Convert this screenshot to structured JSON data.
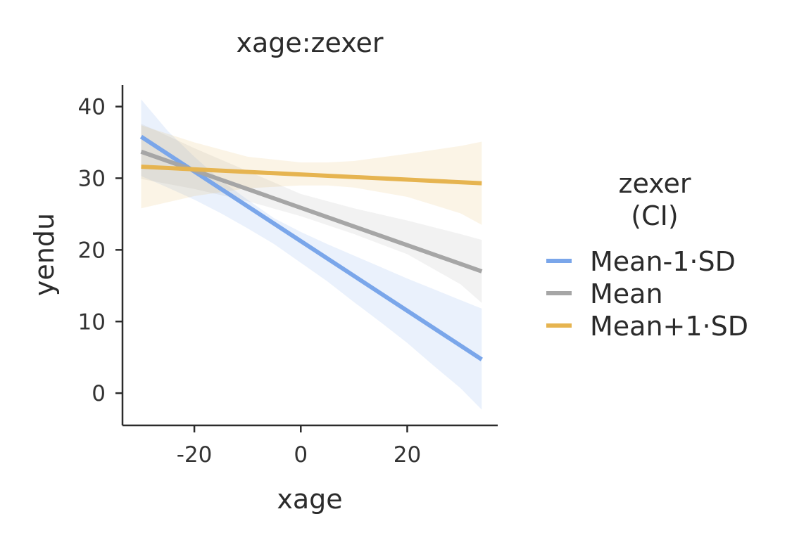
{
  "chart_data": {
    "type": "line",
    "title": "xage:zexer",
    "xlabel": "xage",
    "ylabel": "yendu",
    "xlim": [
      -33.5,
      37
    ],
    "ylim": [
      -4.5,
      43
    ],
    "x_ticks": [
      -20,
      0,
      20
    ],
    "x_tick_labels": [
      "-20",
      "0",
      "20"
    ],
    "y_ticks": [
      0,
      10,
      20,
      30,
      40
    ],
    "y_tick_labels": [
      "0",
      "10",
      "20",
      "30",
      "40"
    ],
    "legend": {
      "title_line1": "zexer",
      "title_line2": "(CI)",
      "placement": "right"
    },
    "series": [
      {
        "name": "Mean-1·SD",
        "color": "#7aa6ea",
        "x": [
          -30,
          34
        ],
        "y": [
          35.8,
          4.7
        ],
        "ci": {
          "x": [
            -30,
            -25,
            -20,
            -15,
            -10,
            -5,
            0,
            5,
            10,
            15,
            20,
            25,
            30,
            34
          ],
          "lower": [
            30.3,
            28.7,
            27.0,
            25.1,
            23.0,
            20.8,
            18.2,
            15.6,
            12.7,
            9.9,
            7.0,
            3.8,
            0.7,
            -2.3
          ],
          "upper": [
            41.0,
            36.6,
            33.0,
            29.7,
            27.0,
            24.4,
            22.5,
            20.8,
            19.2,
            17.6,
            16.0,
            14.5,
            13.0,
            11.8
          ]
        }
      },
      {
        "name": "Mean",
        "color": "#a6a6a6",
        "x": [
          -30,
          34
        ],
        "y": [
          33.7,
          17.0
        ],
        "ci": {
          "x": [
            -30,
            -20,
            -10,
            0,
            10,
            20,
            30,
            34
          ],
          "lower": [
            29.9,
            28.5,
            26.8,
            24.7,
            22.2,
            19.4,
            15.2,
            12.6
          ],
          "upper": [
            37.6,
            34.2,
            31.0,
            27.8,
            25.8,
            24.1,
            22.2,
            21.4
          ]
        }
      },
      {
        "name": "Mean+1·SD",
        "color": "#e6b450",
        "x": [
          -30,
          34
        ],
        "y": [
          31.6,
          29.3
        ],
        "ci": {
          "x": [
            -30,
            -20,
            -10,
            0,
            5,
            10,
            20,
            30,
            34
          ],
          "lower": [
            25.8,
            27.5,
            28.6,
            29.0,
            29.0,
            28.7,
            27.4,
            25.1,
            23.5
          ],
          "upper": [
            37.4,
            35.0,
            33.0,
            32.2,
            32.2,
            32.4,
            33.4,
            34.5,
            35.1
          ]
        }
      }
    ]
  }
}
